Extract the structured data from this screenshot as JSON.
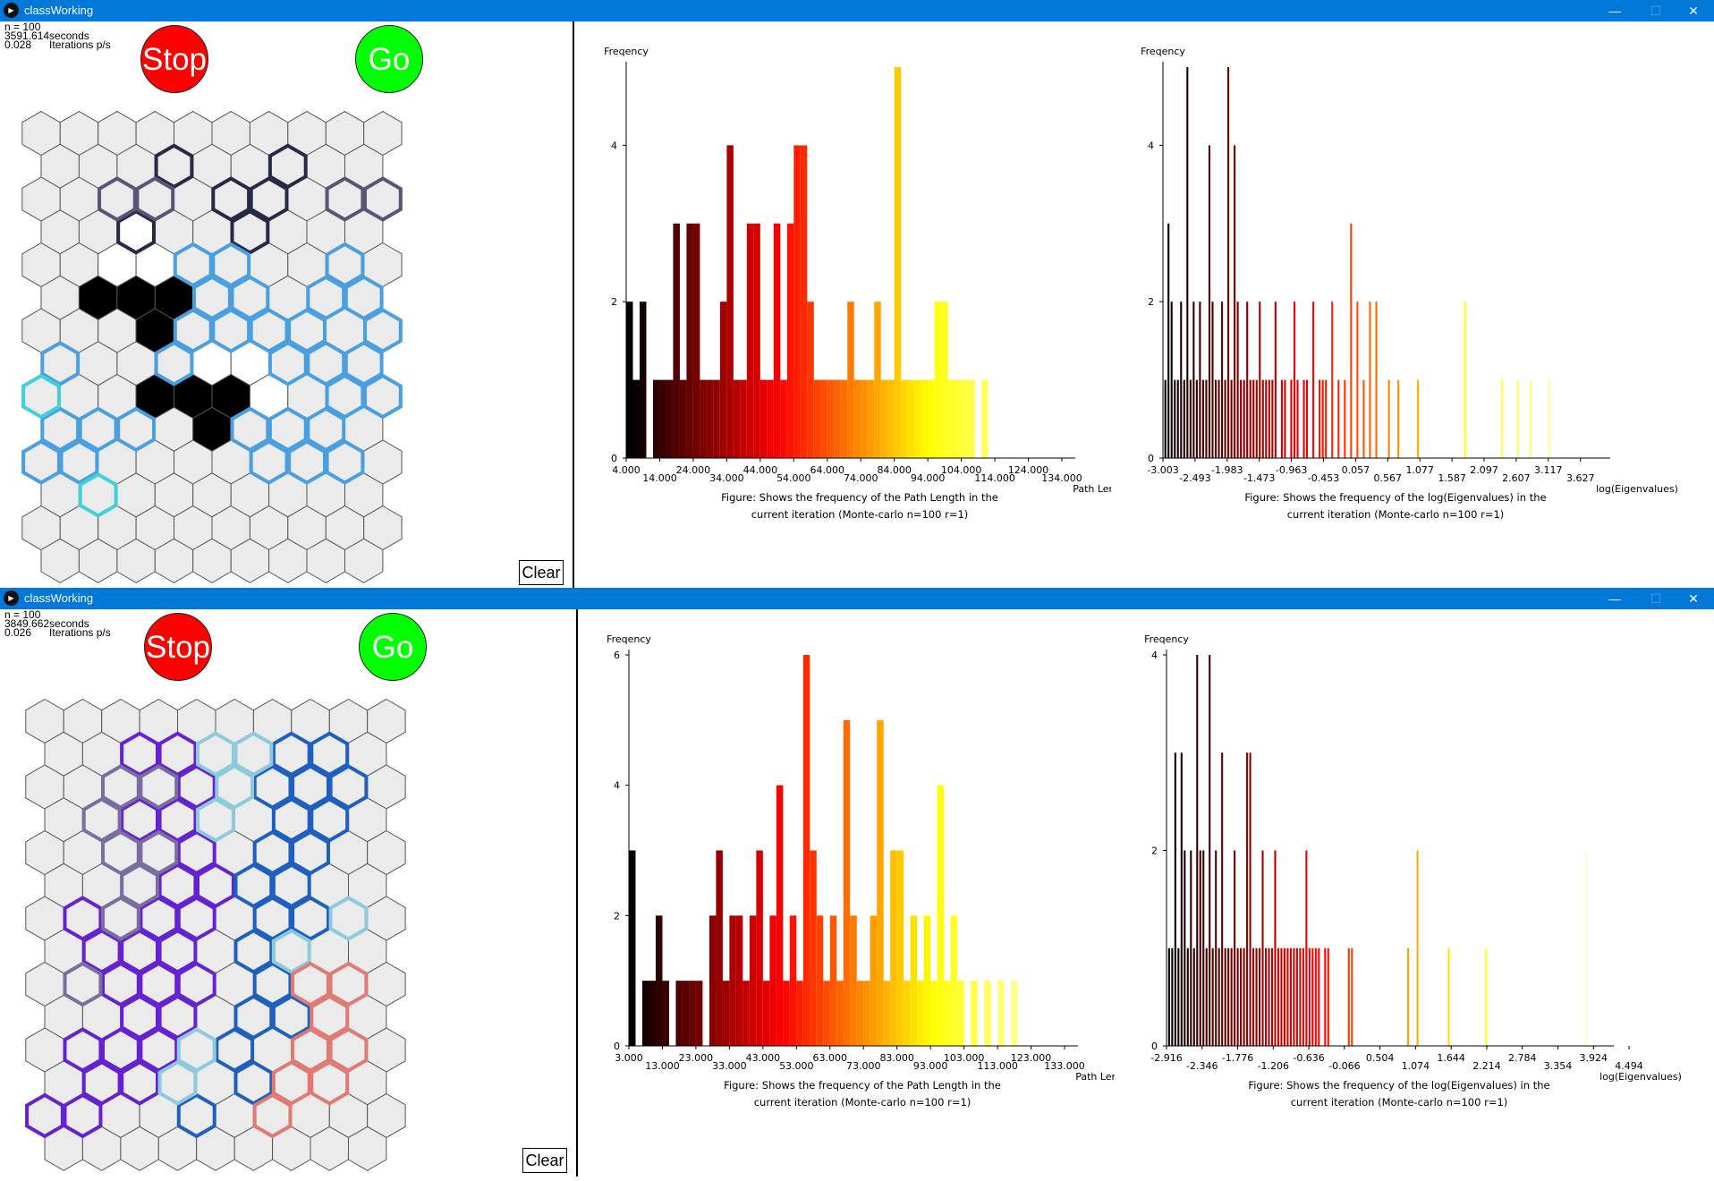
{
  "windows": [
    {
      "title": "classWorking",
      "stats": {
        "n": "n = 100",
        "time": "3591.614seconds",
        "rate": "0.028      Iterations p/s"
      },
      "stop_label": "Stop",
      "go_label": "Go",
      "clear_label": "Clear",
      "hex_colors": {
        "bg": "#ebebeb",
        "edge": "#555555",
        "black": "#000000",
        "white": "#ffffff",
        "navy": "#262a45",
        "slate": "#5a5577",
        "blue": "#4a9fe0",
        "cyan": "#40d0d8"
      }
    },
    {
      "title": "classWorking",
      "stats": {
        "n": "n = 100",
        "time": "3849.662seconds",
        "rate": "0.026      Iterations p/s"
      },
      "stop_label": "Stop",
      "go_label": "Go",
      "clear_label": "Clear",
      "hex_colors": {
        "bg": "#ebebeb",
        "edge": "#555555",
        "violet": "#6422d2",
        "blue": "#1e5fc0",
        "lightblue": "#8ccadc",
        "salmon": "#e07a72",
        "grey": "#7a6e9e"
      }
    }
  ],
  "window_controls": {
    "minimize": "—",
    "maximize": "☐",
    "close": "✕"
  },
  "chart_data": [
    {
      "type": "bar",
      "window": 1,
      "id": "path-length-1",
      "title": "",
      "ylabel": "Freqency",
      "xlabel": "Path Length",
      "caption_lines": [
        "Figure: Shows the frequency of the Path Length in the",
        "current iteration (Monte-carlo n=100 r=1)"
      ],
      "xlim": [
        4,
        138
      ],
      "ylim": [
        0,
        5
      ],
      "yticks": [
        "0",
        "2",
        "4"
      ],
      "xticks": [
        "4.000",
        "14.000",
        "24.000",
        "34.000",
        "44.000",
        "54.000",
        "64.000",
        "74.000",
        "84.000",
        "94.000",
        "104.000",
        "114.000",
        "124.000",
        "134.000"
      ],
      "bin_start": 4,
      "bin_width": 2,
      "values": [
        2,
        1,
        2,
        0,
        1,
        1,
        1,
        3,
        1,
        3,
        3,
        1,
        1,
        1,
        2,
        4,
        1,
        1,
        3,
        3,
        1,
        1,
        3,
        1,
        3,
        4,
        4,
        2,
        1,
        1,
        1,
        1,
        1,
        2,
        1,
        1,
        1,
        2,
        1,
        1,
        5,
        1,
        1,
        1,
        1,
        1,
        2,
        2,
        1,
        1,
        1,
        1,
        0,
        1
      ]
    },
    {
      "type": "bar",
      "window": 1,
      "id": "eigen-1",
      "title": "",
      "ylabel": "Freqency",
      "xlabel": "log(Eigenvalues)",
      "caption_lines": [
        "Figure: Shows the frequency of the log(Eigenvalues) in the",
        "current iteration (Monte-carlo n=100 r=1)"
      ],
      "xlim": [
        -3.003,
        4.1
      ],
      "ylim": [
        0,
        5
      ],
      "yticks": [
        "0",
        "2",
        "4"
      ],
      "xticks": [
        "-3.003",
        "-2.493",
        "-1.983",
        "-1.473",
        "-0.963",
        "-0.453",
        "0.057",
        "0.567",
        "1.077",
        "1.587",
        "2.097",
        "2.607",
        "3.117",
        "3.627"
      ],
      "points": [
        [
          -2.98,
          1
        ],
        [
          -2.93,
          3
        ],
        [
          -2.88,
          2
        ],
        [
          -2.83,
          1
        ],
        [
          -2.78,
          1
        ],
        [
          -2.73,
          2
        ],
        [
          -2.68,
          1
        ],
        [
          -2.63,
          5
        ],
        [
          -2.58,
          1
        ],
        [
          -2.53,
          2
        ],
        [
          -2.48,
          1
        ],
        [
          -2.43,
          2
        ],
        [
          -2.38,
          1
        ],
        [
          -2.33,
          1
        ],
        [
          -2.28,
          4
        ],
        [
          -2.23,
          2
        ],
        [
          -2.18,
          1
        ],
        [
          -2.13,
          1
        ],
        [
          -2.08,
          2
        ],
        [
          -2.03,
          1
        ],
        [
          -1.98,
          5
        ],
        [
          -1.93,
          1
        ],
        [
          -1.88,
          4
        ],
        [
          -1.83,
          2
        ],
        [
          -1.78,
          1
        ],
        [
          -1.73,
          1
        ],
        [
          -1.68,
          2
        ],
        [
          -1.63,
          1
        ],
        [
          -1.58,
          1
        ],
        [
          -1.53,
          1
        ],
        [
          -1.48,
          2
        ],
        [
          -1.43,
          1
        ],
        [
          -1.38,
          1
        ],
        [
          -1.33,
          1
        ],
        [
          -1.28,
          1
        ],
        [
          -1.23,
          2
        ],
        [
          -1.13,
          1
        ],
        [
          -1.08,
          1
        ],
        [
          -0.98,
          1
        ],
        [
          -0.93,
          2
        ],
        [
          -0.88,
          1
        ],
        [
          -0.78,
          1
        ],
        [
          -0.73,
          1
        ],
        [
          -0.63,
          2
        ],
        [
          -0.53,
          1
        ],
        [
          -0.48,
          1
        ],
        [
          -0.43,
          1
        ],
        [
          -0.33,
          2
        ],
        [
          -0.23,
          1
        ],
        [
          -0.13,
          1
        ],
        [
          -0.03,
          3
        ],
        [
          0.07,
          2
        ],
        [
          0.17,
          1
        ],
        [
          0.27,
          2
        ],
        [
          0.37,
          2
        ],
        [
          0.57,
          1
        ],
        [
          0.72,
          1
        ],
        [
          1.03,
          1
        ],
        [
          1.78,
          2
        ],
        [
          2.37,
          1
        ],
        [
          2.62,
          1
        ],
        [
          2.82,
          1
        ],
        [
          3.12,
          1
        ],
        [
          4.05,
          1
        ]
      ]
    },
    {
      "type": "bar",
      "window": 2,
      "id": "path-length-2",
      "title": "",
      "ylabel": "Freqency",
      "xlabel": "Path Length",
      "caption_lines": [
        "Figure: Shows the frequency of the Path Length in the",
        "current iteration (Monte-carlo n=100 r=1)"
      ],
      "xlim": [
        3,
        137
      ],
      "ylim": [
        0,
        6
      ],
      "yticks": [
        "0",
        "2",
        "4",
        "6"
      ],
      "xticks": [
        "3.000",
        "13.000",
        "23.000",
        "33.000",
        "43.000",
        "53.000",
        "63.000",
        "73.000",
        "83.000",
        "93.000",
        "103.000",
        "113.000",
        "123.000",
        "133.000"
      ],
      "bin_start": 3,
      "bin_width": 2,
      "values": [
        3,
        0,
        1,
        1,
        2,
        1,
        0,
        1,
        1,
        1,
        1,
        0,
        2,
        3,
        1,
        2,
        2,
        1,
        2,
        3,
        1,
        2,
        4,
        1,
        2,
        1,
        6,
        3,
        2,
        1,
        2,
        1,
        5,
        2,
        1,
        1,
        2,
        5,
        1,
        3,
        3,
        1,
        2,
        1,
        2,
        1,
        4,
        1,
        2,
        1,
        0,
        1,
        0,
        1,
        0,
        1,
        0,
        1
      ]
    },
    {
      "type": "bar",
      "window": 2,
      "id": "eigen-2",
      "title": "",
      "ylabel": "Freqency",
      "xlabel": "log(Eigenvalues)",
      "caption_lines": [
        "Figure: Shows the frequency of the log(Eigenvalues) in the",
        "current iteration (Monte-carlo n=100 r=1)"
      ],
      "xlim": [
        -2.916,
        4.25
      ],
      "ylim": [
        0,
        4
      ],
      "yticks": [
        "0",
        "2",
        "4"
      ],
      "xticks": [
        "-2.916",
        "-2.346",
        "-1.776",
        "-1.206",
        "-0.636",
        "-0.066",
        "0.504",
        "1.074",
        "1.644",
        "2.214",
        "2.784",
        "3.354",
        "3.924",
        "4.494"
      ],
      "points": [
        [
          -2.89,
          1
        ],
        [
          -2.84,
          1
        ],
        [
          -2.79,
          3
        ],
        [
          -2.74,
          1
        ],
        [
          -2.69,
          3
        ],
        [
          -2.64,
          2
        ],
        [
          -2.59,
          1
        ],
        [
          -2.54,
          2
        ],
        [
          -2.49,
          1
        ],
        [
          -2.44,
          4
        ],
        [
          -2.39,
          2
        ],
        [
          -2.34,
          2
        ],
        [
          -2.29,
          1
        ],
        [
          -2.24,
          4
        ],
        [
          -2.19,
          1
        ],
        [
          -2.14,
          2
        ],
        [
          -2.09,
          1
        ],
        [
          -2.04,
          3
        ],
        [
          -1.99,
          1
        ],
        [
          -1.94,
          1
        ],
        [
          -1.89,
          1
        ],
        [
          -1.84,
          2
        ],
        [
          -1.79,
          1
        ],
        [
          -1.74,
          1
        ],
        [
          -1.69,
          1
        ],
        [
          -1.64,
          3
        ],
        [
          -1.59,
          3
        ],
        [
          -1.54,
          1
        ],
        [
          -1.49,
          1
        ],
        [
          -1.44,
          1
        ],
        [
          -1.39,
          2
        ],
        [
          -1.34,
          1
        ],
        [
          -1.29,
          1
        ],
        [
          -1.24,
          1
        ],
        [
          -1.19,
          2
        ],
        [
          -1.14,
          1
        ],
        [
          -1.09,
          1
        ],
        [
          -1.04,
          1
        ],
        [
          -0.99,
          1
        ],
        [
          -0.94,
          1
        ],
        [
          -0.89,
          1
        ],
        [
          -0.84,
          1
        ],
        [
          -0.79,
          1
        ],
        [
          -0.74,
          1
        ],
        [
          -0.69,
          2
        ],
        [
          -0.64,
          1
        ],
        [
          -0.59,
          1
        ],
        [
          -0.54,
          1
        ],
        [
          -0.49,
          1
        ],
        [
          -0.39,
          1
        ],
        [
          -0.34,
          1
        ],
        [
          -0.01,
          1
        ],
        [
          0.04,
          1
        ],
        [
          0.94,
          1
        ],
        [
          1.09,
          2
        ],
        [
          1.59,
          1
        ],
        [
          2.19,
          1
        ],
        [
          3.79,
          2
        ]
      ]
    }
  ]
}
